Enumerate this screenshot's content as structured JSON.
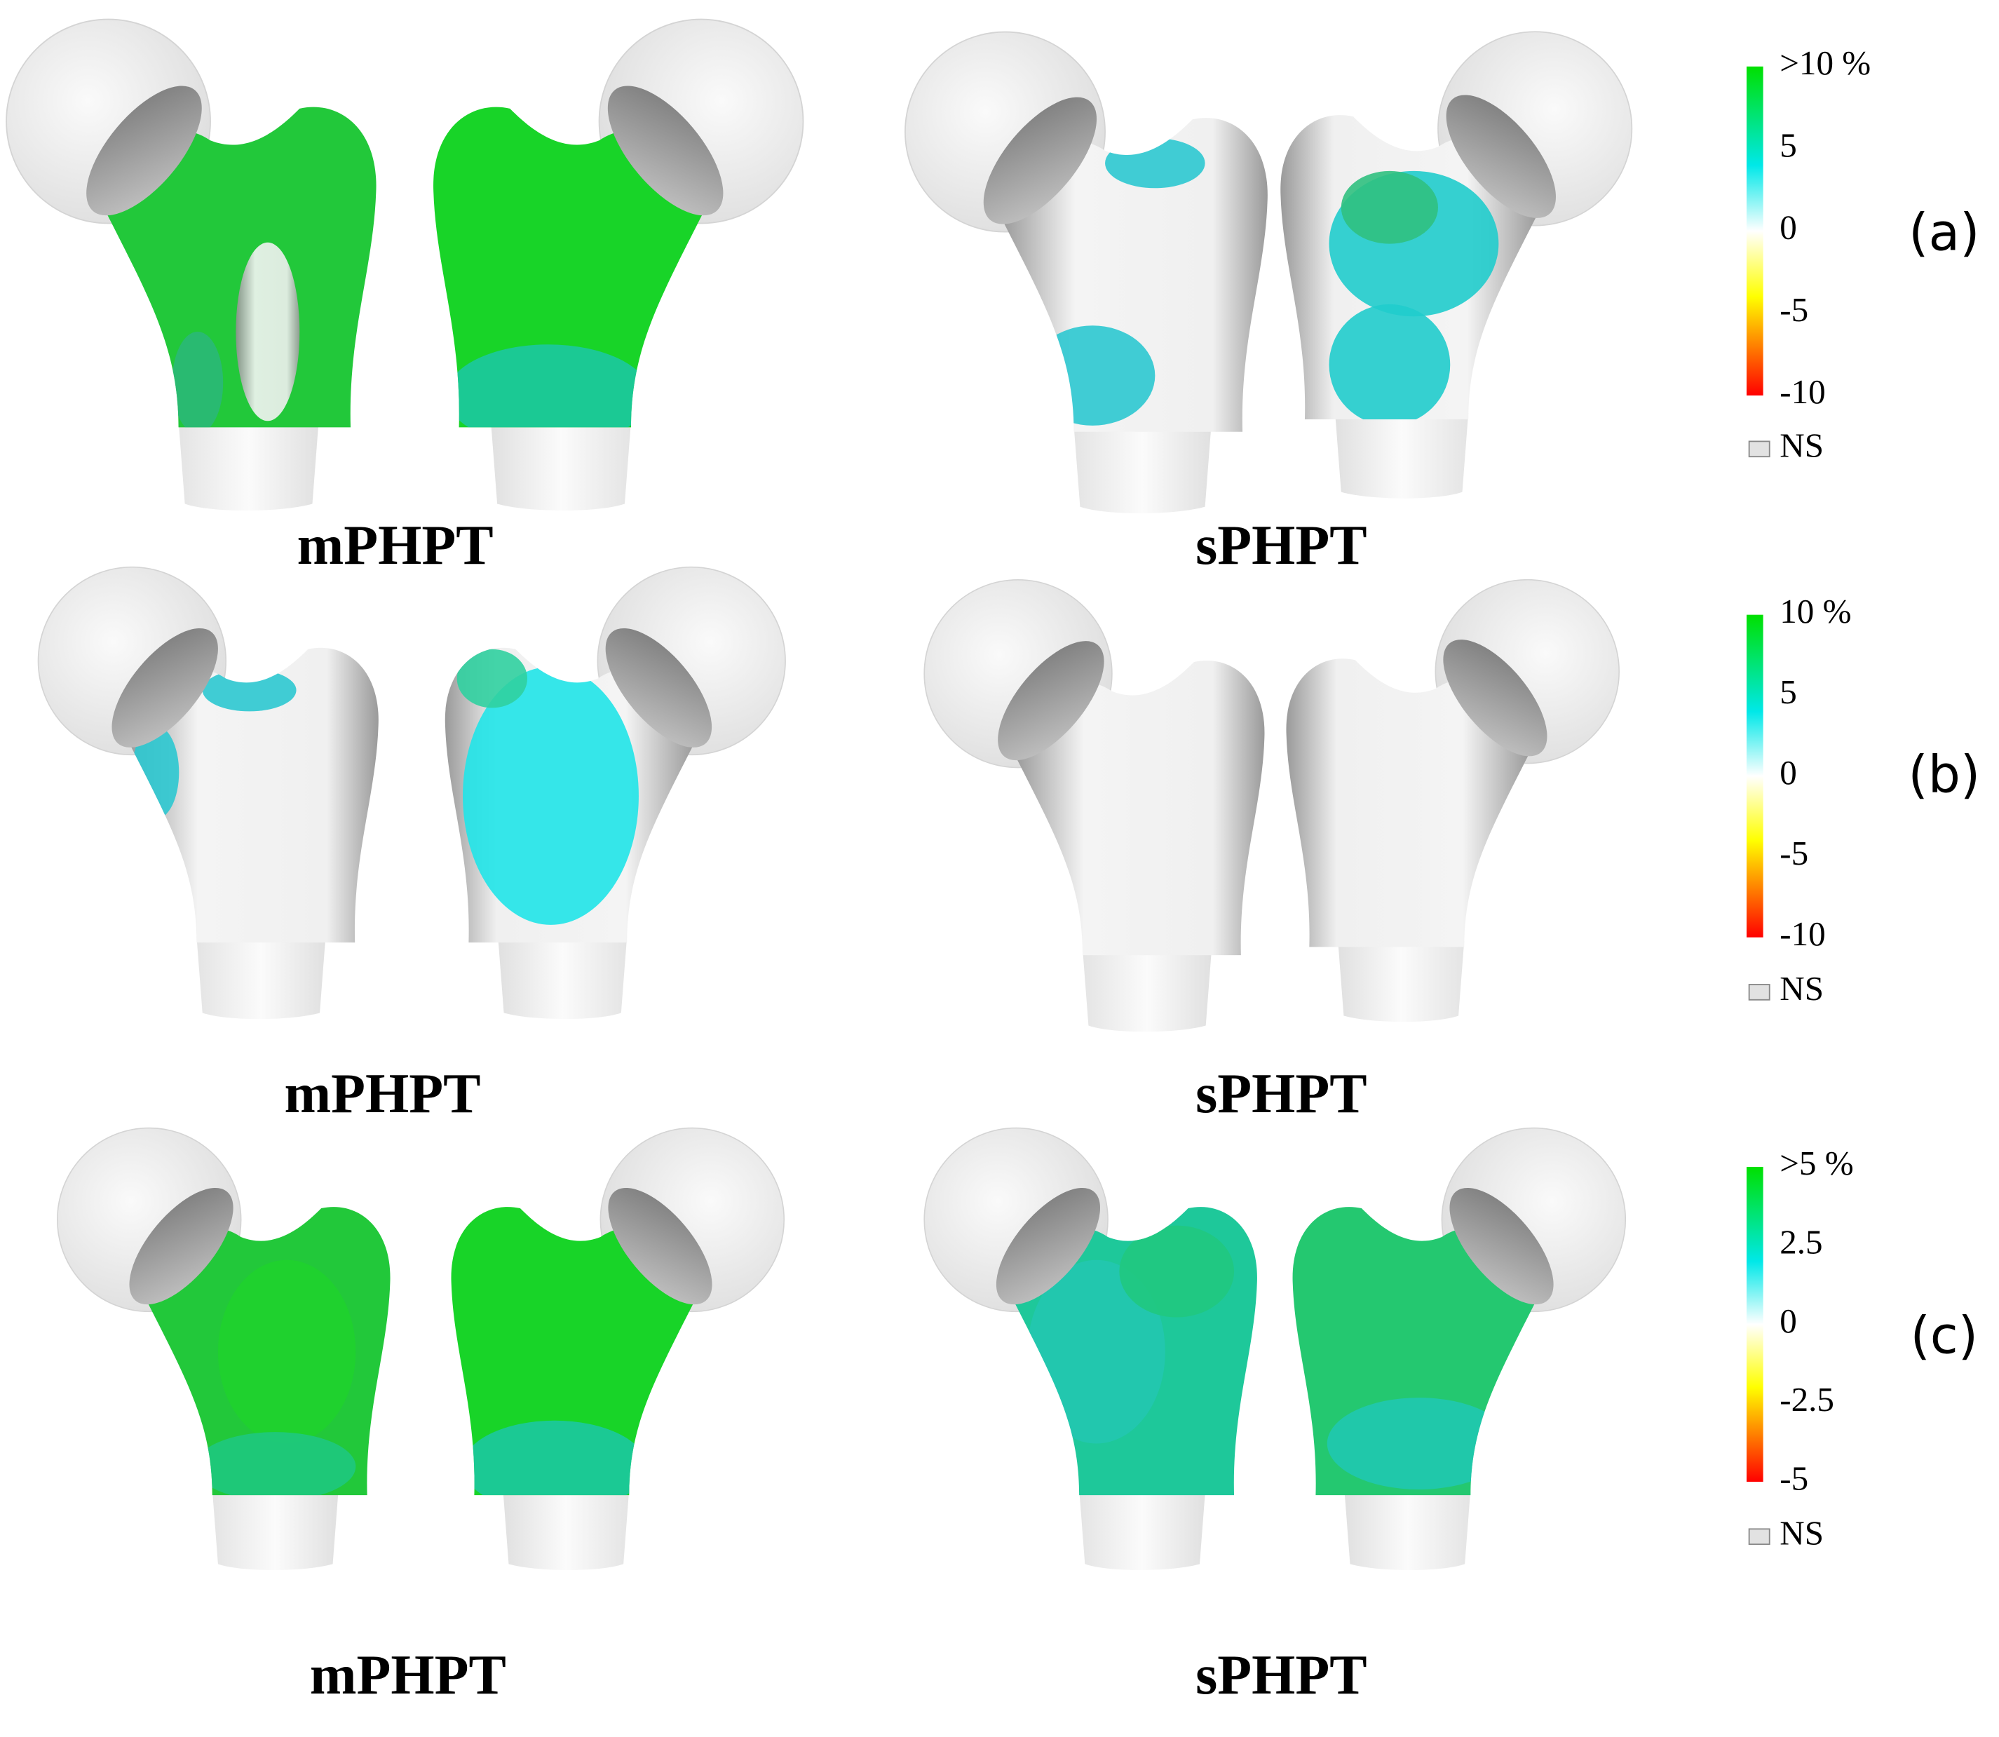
{
  "panels": [
    {
      "label": "(a)",
      "groups": [
        "mPHPT",
        "sPHPT"
      ],
      "colorbar": {
        "ticks": [
          ">10 %",
          "5",
          "0",
          "-5",
          "-10"
        ],
        "ns": "NS"
      }
    },
    {
      "label": "(b)",
      "groups": [
        "mPHPT",
        "sPHPT"
      ],
      "colorbar": {
        "ticks": [
          "10 %",
          "5",
          "0",
          "-5",
          "-10"
        ],
        "ns": "NS"
      }
    },
    {
      "label": "(c)",
      "groups": [
        "mPHPT",
        "sPHPT"
      ],
      "colorbar": {
        "ticks": [
          ">5 %",
          "2.5",
          "0",
          "-2.5",
          "-5"
        ],
        "ns": "NS"
      }
    }
  ]
}
